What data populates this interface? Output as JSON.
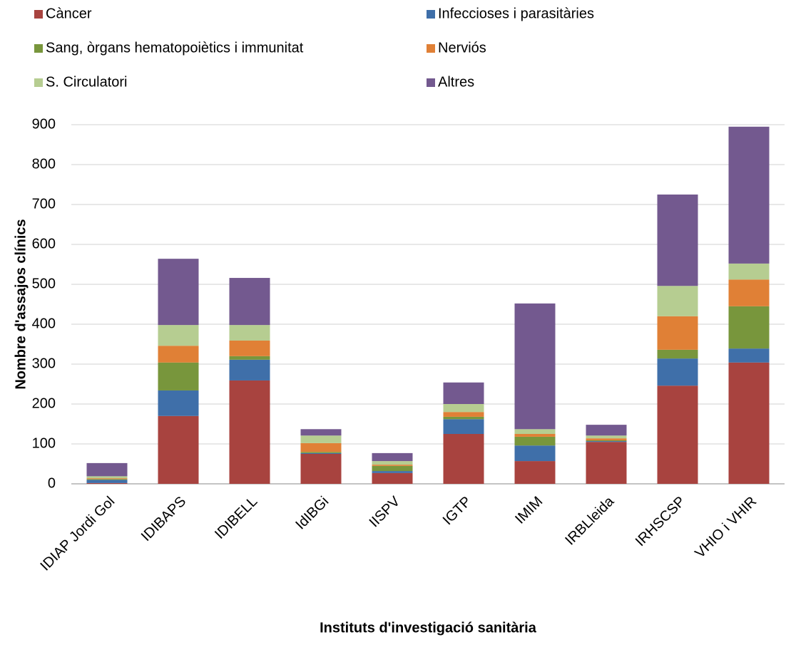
{
  "chart_data": {
    "type": "stacked_bar",
    "x_label": "Instituts d'investigació  sanitària",
    "y_label": "Nombre d'assajos clínics",
    "categories": [
      "IDIAP Jordi Gol",
      "IDIBAPS",
      "IDIBELL",
      "IdIBGi",
      "IISPV",
      "IGTP",
      "IMIM",
      "IRBLleida",
      "IRHSCSP",
      "VHIO i VHIR"
    ],
    "series": [
      {
        "name": "Càncer",
        "color": "#a8433f",
        "values": [
          2,
          170,
          259,
          75,
          27,
          125,
          57,
          105,
          246,
          304
        ]
      },
      {
        "name": "Infeccioses i parasitàries",
        "color": "#3f6fa9",
        "values": [
          8,
          64,
          52,
          2,
          5,
          37,
          39,
          2,
          68,
          35
        ]
      },
      {
        "name": "Sang, òrgans hematopoiètics i immunitat",
        "color": "#78963c",
        "values": [
          2,
          70,
          9,
          3,
          13,
          6,
          22,
          2,
          22,
          106
        ]
      },
      {
        "name": "Nerviós",
        "color": "#e08036",
        "values": [
          2,
          42,
          39,
          22,
          3,
          12,
          7,
          5,
          84,
          67
        ]
      },
      {
        "name": "S. Circulatori",
        "color": "#b6cd91",
        "values": [
          5,
          52,
          39,
          19,
          9,
          20,
          12,
          7,
          76,
          40
        ]
      },
      {
        "name": "Altres",
        "color": "#73598f",
        "values": [
          33,
          166,
          118,
          16,
          20,
          54,
          315,
          27,
          229,
          343
        ]
      }
    ],
    "ylim": [
      0,
      900
    ],
    "yticks": [
      0,
      100,
      200,
      300,
      400,
      500,
      600,
      700,
      800,
      900
    ],
    "grid": true
  }
}
